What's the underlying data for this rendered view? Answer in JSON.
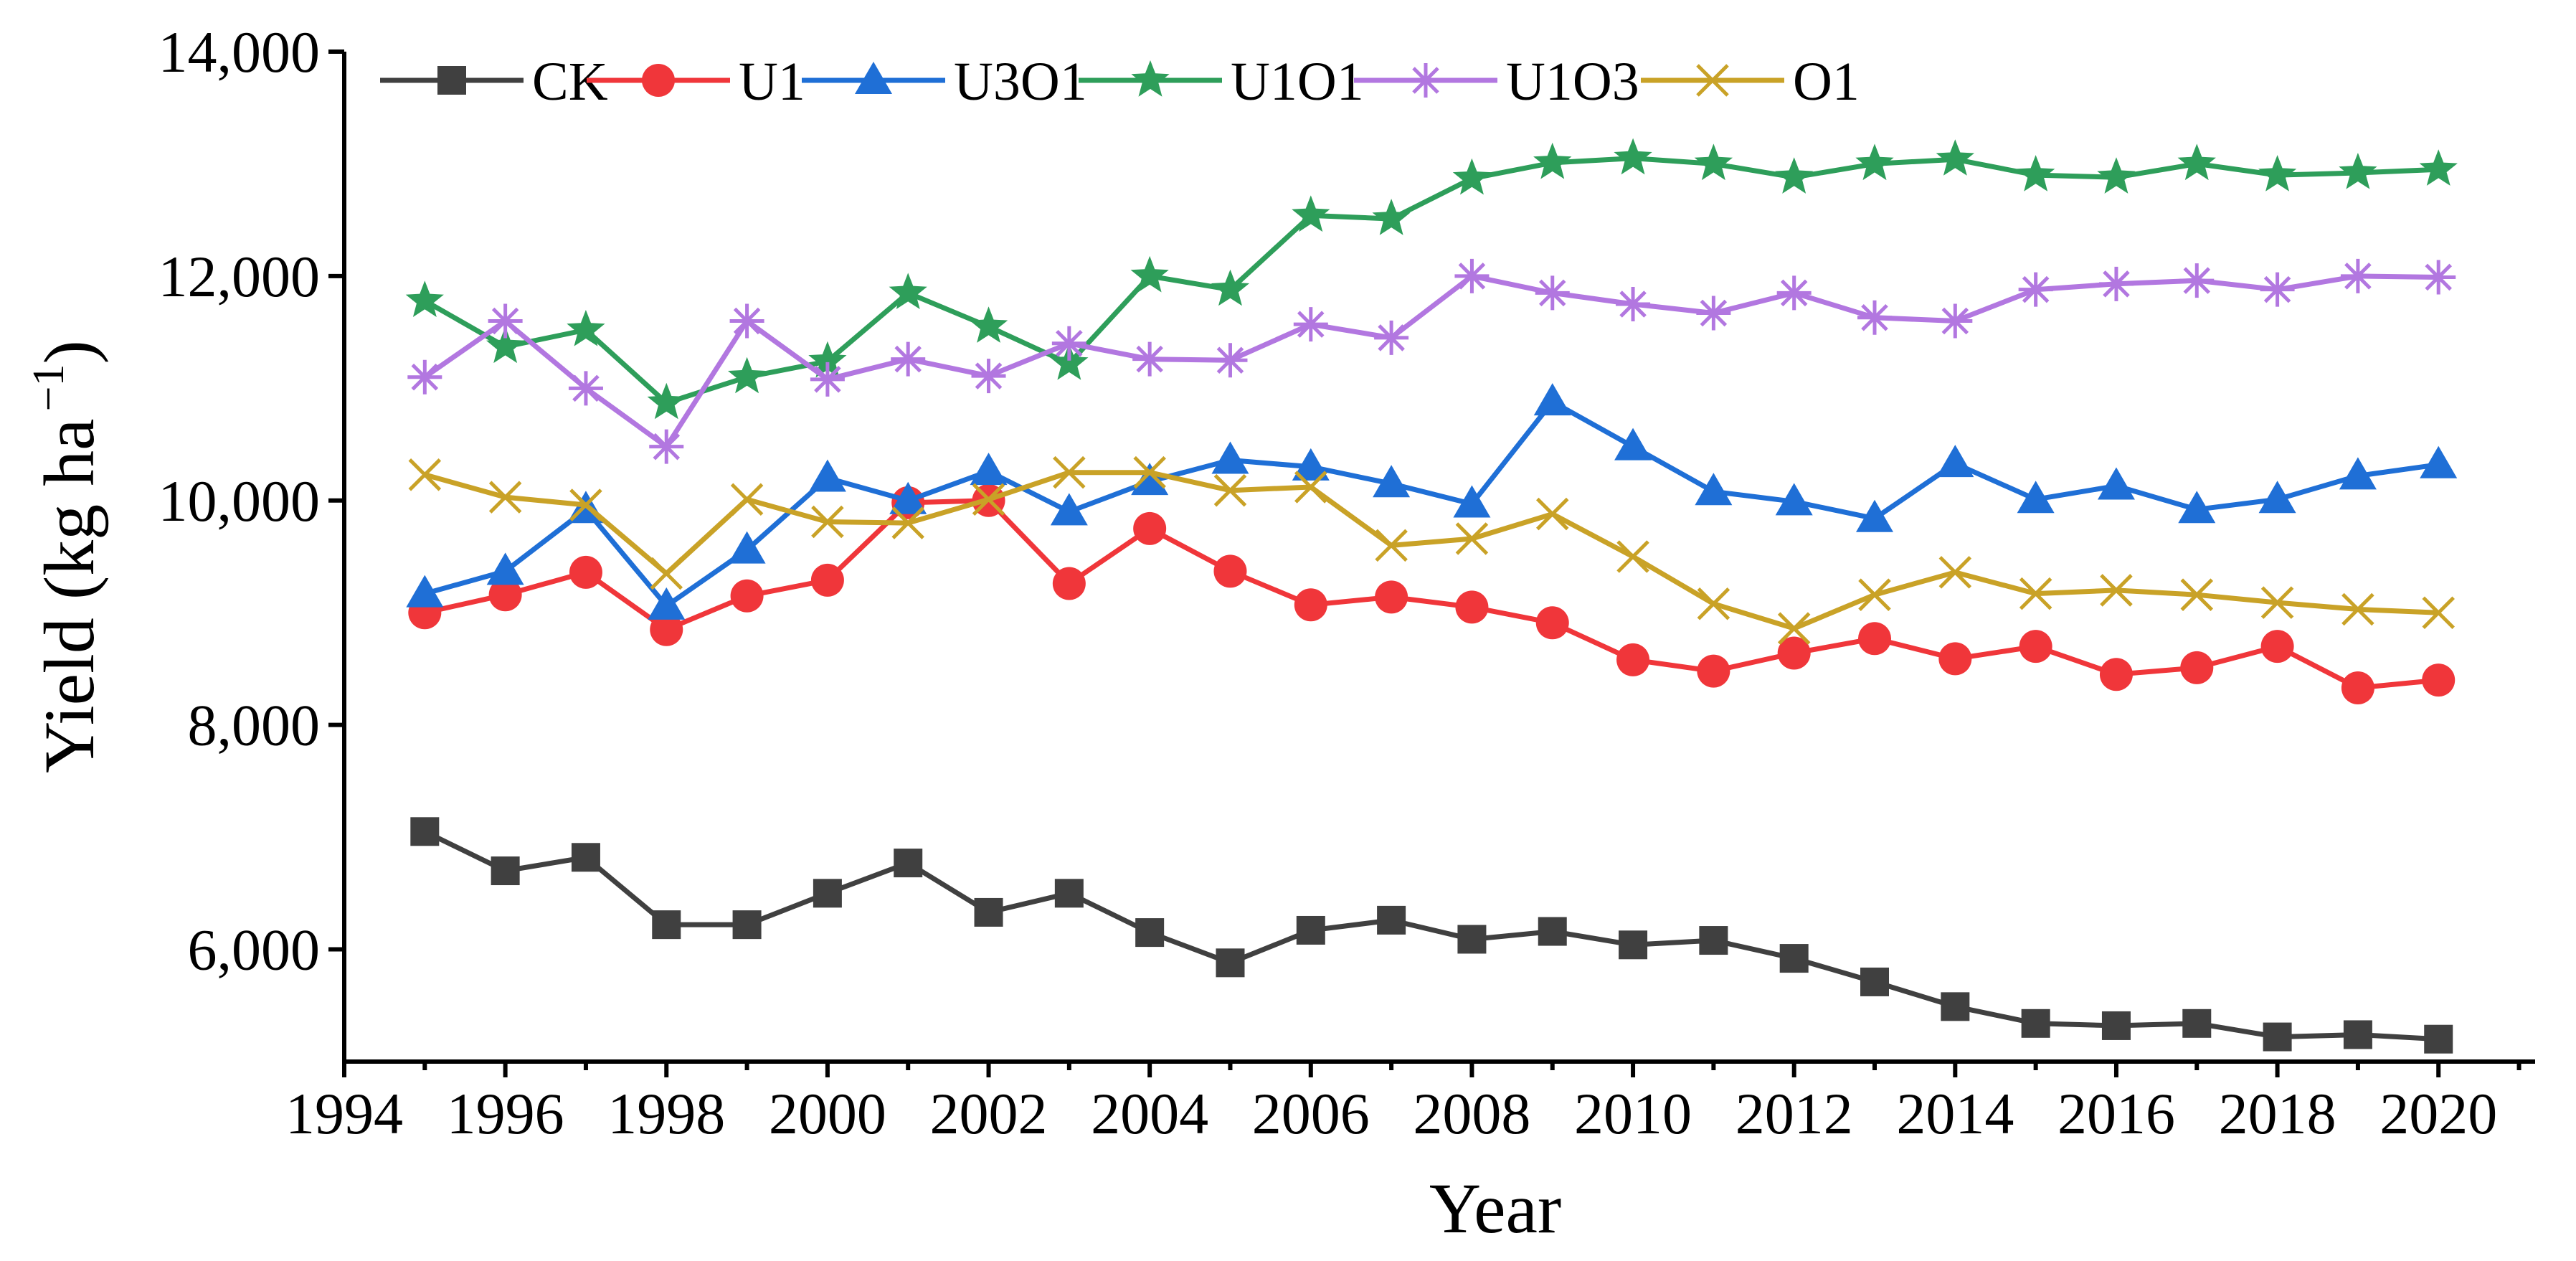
{
  "chart_data": {
    "type": "line",
    "title": "",
    "xlabel": "Year",
    "ylabel_main": "Yield (kg ha",
    "ylabel_sup": "−1",
    "ylabel_close": ")",
    "xlim": [
      1994,
      2021.2
    ],
    "ylim": [
      5000,
      14000
    ],
    "x_ticks": [
      1994,
      1996,
      1998,
      2000,
      2002,
      2004,
      2006,
      2008,
      2010,
      2012,
      2014,
      2016,
      2018,
      2020
    ],
    "y_ticks": [
      6000,
      8000,
      10000,
      12000,
      14000
    ],
    "y_tick_labels": [
      "6,000",
      "8,000",
      "10,000",
      "12,000",
      "14,000"
    ],
    "grid": false,
    "legend_position": "top",
    "x": [
      1995,
      1996,
      1997,
      1998,
      1999,
      2000,
      2001,
      2002,
      2003,
      2004,
      2005,
      2006,
      2007,
      2008,
      2009,
      2010,
      2011,
      2012,
      2013,
      2014,
      2015,
      2016,
      2017,
      2018,
      2019,
      2020
    ],
    "series": [
      {
        "name": "CK",
        "color": "#404040",
        "marker": "square",
        "values": [
          7050,
          6700,
          6820,
          6220,
          6220,
          6500,
          6770,
          6330,
          6500,
          6150,
          5880,
          6170,
          6260,
          6090,
          6160,
          6040,
          6080,
          5920,
          5710,
          5490,
          5340,
          5320,
          5340,
          5220,
          5240,
          5200
        ]
      },
      {
        "name": "U1",
        "color": "#f0363a",
        "marker": "circle",
        "values": [
          9000,
          9160,
          9360,
          8850,
          9150,
          9290,
          9980,
          10000,
          9260,
          9750,
          9370,
          9070,
          9140,
          9050,
          8910,
          8580,
          8480,
          8640,
          8770,
          8590,
          8700,
          8450,
          8510,
          8700,
          8330,
          8400
        ]
      },
      {
        "name": "U3O1",
        "color": "#1f6fd6",
        "marker": "triangle",
        "values": [
          9170,
          9370,
          9920,
          9060,
          9560,
          10200,
          10000,
          10260,
          9900,
          10170,
          10360,
          10300,
          10150,
          9970,
          10880,
          10480,
          10080,
          9990,
          9840,
          10330,
          10010,
          10130,
          9920,
          10010,
          10220,
          10320
        ]
      },
      {
        "name": "U1O1",
        "color": "#2e9e5a",
        "marker": "star",
        "values": [
          11780,
          11370,
          11520,
          10870,
          11100,
          11240,
          11850,
          11550,
          11220,
          12000,
          11880,
          12540,
          12510,
          12870,
          13010,
          13050,
          13000,
          12880,
          13000,
          13040,
          12900,
          12880,
          13000,
          12900,
          12920,
          12950
        ]
      },
      {
        "name": "U1O3",
        "color": "#b277e0",
        "marker": "asterisk",
        "values": [
          11100,
          11600,
          11000,
          10480,
          11600,
          11080,
          11260,
          11110,
          11400,
          11260,
          11250,
          11570,
          11450,
          12000,
          11850,
          11750,
          11670,
          11850,
          11630,
          11600,
          11880,
          11930,
          11960,
          11880,
          12000,
          11990
        ]
      },
      {
        "name": "O1",
        "color": "#c9a227",
        "marker": "x",
        "values": [
          10230,
          10030,
          9960,
          9350,
          10010,
          9810,
          9800,
          10010,
          10250,
          10250,
          10090,
          10120,
          9600,
          9660,
          9880,
          9500,
          9080,
          8860,
          9160,
          9360,
          9170,
          9200,
          9160,
          9090,
          9030,
          9000
        ]
      }
    ]
  }
}
